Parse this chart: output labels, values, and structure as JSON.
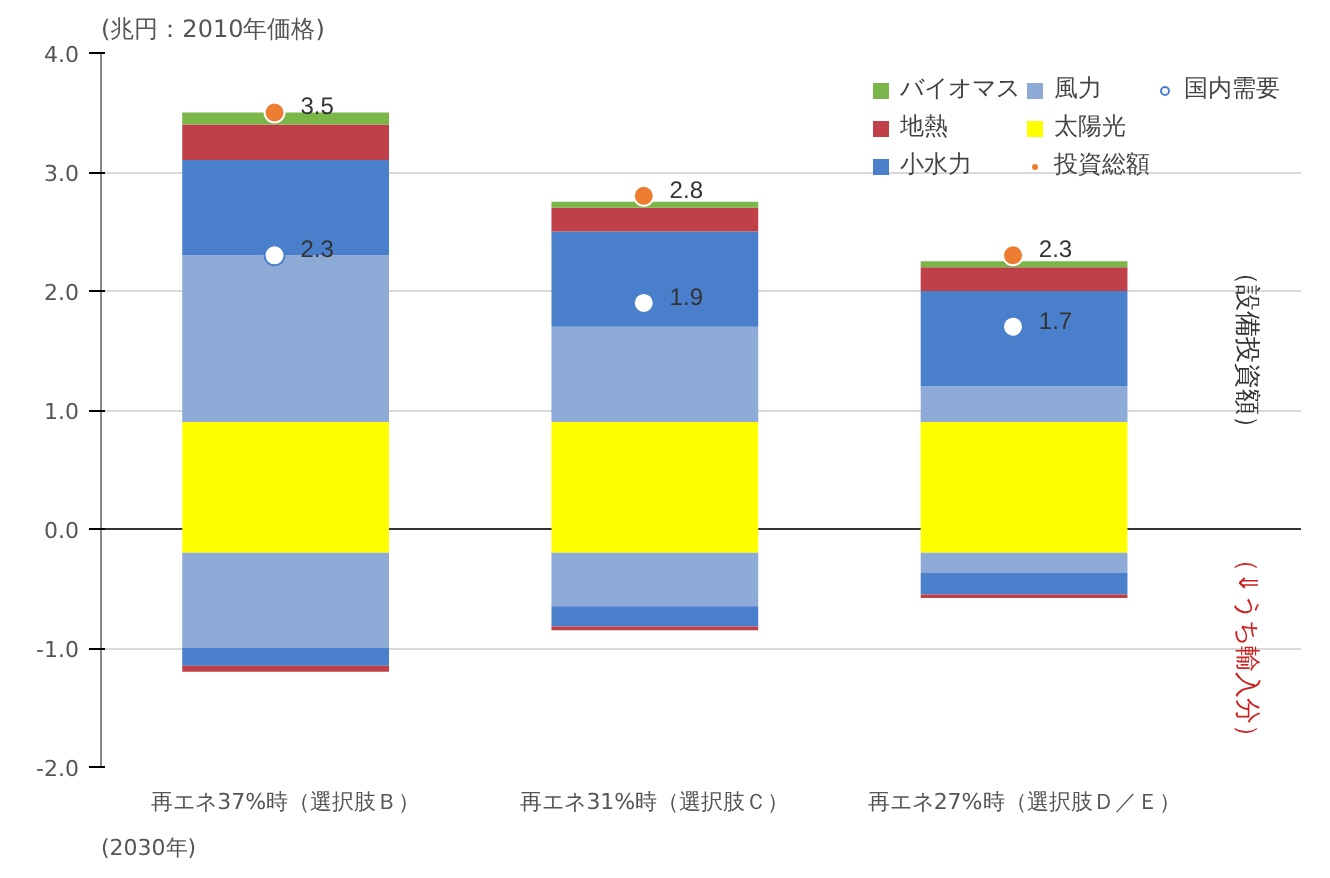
{
  "chart_data": {
    "type": "bar",
    "stacked": true,
    "ylabel": "(兆円：2010年価格)",
    "categories": [
      "再エネ37%時（選択肢Ｂ）",
      "再エネ31%時（選択肢Ｃ）",
      "再エネ27%時（選択肢Ｄ／Ｅ）"
    ],
    "series": [
      {
        "name": "太陽光",
        "color": "#ffff00",
        "values": [
          0.9,
          0.9,
          0.9
        ]
      },
      {
        "name": "風力",
        "color": "#8eaad6",
        "values": [
          1.4,
          0.8,
          0.3
        ]
      },
      {
        "name": "小水力",
        "color": "#4a7fcc",
        "values": [
          0.8,
          0.8,
          0.8
        ]
      },
      {
        "name": "地熱",
        "color": "#c0404a",
        "values": [
          0.3,
          0.2,
          0.2
        ]
      },
      {
        "name": "バイオマス",
        "color": "#7ab648",
        "values": [
          0.1,
          0.05,
          0.05
        ]
      },
      {
        "color": "#ffff00",
        "values": [
          -0.2,
          -0.2,
          -0.2
        ]
      },
      {
        "color": "#8eaad6",
        "values": [
          -0.8,
          -0.45,
          -0.17
        ]
      },
      {
        "color": "#4a7fcc",
        "values": [
          -0.15,
          -0.17,
          -0.18
        ]
      },
      {
        "color": "#c0404a",
        "values": [
          -0.05,
          -0.03,
          -0.03
        ]
      },
      {
        "name": "投資総額",
        "type": "scatter",
        "color": "#ed7d31",
        "values": [
          3.5,
          2.8,
          2.3
        ],
        "value_labels": [
          "3.5",
          "2.8",
          "2.3"
        ]
      },
      {
        "name": "国内需要",
        "type": "scatter",
        "color": "#ffffff",
        "values": [
          2.3,
          1.9,
          1.7
        ],
        "value_labels": [
          "2.3",
          "1.9",
          "1.7"
        ]
      }
    ],
    "marker": "circle",
    "ylim": [
      -2.0,
      4.0
    ],
    "yticks": [
      {
        "value": -2,
        "label": "-2.0"
      },
      {
        "value": -1,
        "label": "-1.0"
      },
      {
        "value": 0,
        "label": "0.0"
      },
      {
        "value": 1,
        "label": "1.0"
      },
      {
        "value": 2,
        "label": "2.0"
      },
      {
        "value": 3,
        "label": "3.0"
      },
      {
        "value": 4,
        "label": "4.0"
      }
    ],
    "grid": "y",
    "legend": "top right",
    "annotations": [
      "（設備投資額）",
      "（⇓うち輸入分）",
      "(2030年)"
    ]
  }
}
